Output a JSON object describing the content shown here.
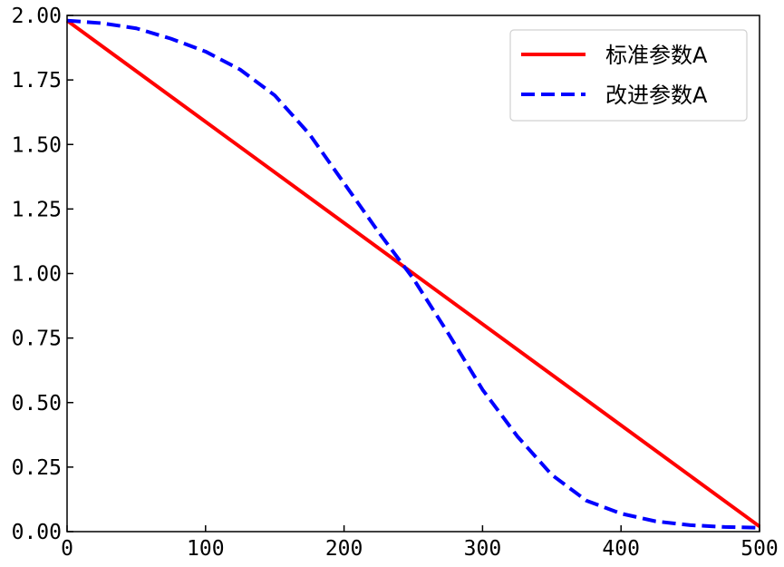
{
  "chart_data": {
    "type": "line",
    "title": "",
    "xlabel": "",
    "ylabel": "",
    "xlim": [
      0,
      500
    ],
    "ylim": [
      0,
      2
    ],
    "grid": false,
    "legend_position": "top-right",
    "x_ticks": [
      0,
      100,
      200,
      300,
      400,
      500
    ],
    "x_tick_labels": [
      "0",
      "100",
      "200",
      "300",
      "400",
      "500"
    ],
    "y_ticks": [
      0,
      0.25,
      0.5,
      0.75,
      1.0,
      1.25,
      1.5,
      1.75,
      2.0
    ],
    "y_tick_labels": [
      "0.00",
      "0.25",
      "0.50",
      "0.75",
      "1.00",
      "1.25",
      "1.50",
      "1.75",
      "2.00"
    ],
    "series": [
      {
        "name": "标准参数A",
        "color": "#ff0000",
        "style": "solid",
        "x": [
          0,
          500
        ],
        "y": [
          1.98,
          0.02
        ]
      },
      {
        "name": "改进参数A",
        "color": "#0000ff",
        "style": "dashed",
        "x": [
          0,
          25,
          50,
          75,
          100,
          125,
          150,
          175,
          200,
          225,
          250,
          275,
          300,
          325,
          350,
          375,
          400,
          425,
          450,
          475,
          500
        ],
        "y": [
          1.98,
          1.97,
          1.95,
          1.91,
          1.86,
          1.79,
          1.69,
          1.54,
          1.35,
          1.16,
          0.98,
          0.77,
          0.55,
          0.37,
          0.22,
          0.12,
          0.07,
          0.04,
          0.025,
          0.018,
          0.015
        ]
      }
    ]
  }
}
